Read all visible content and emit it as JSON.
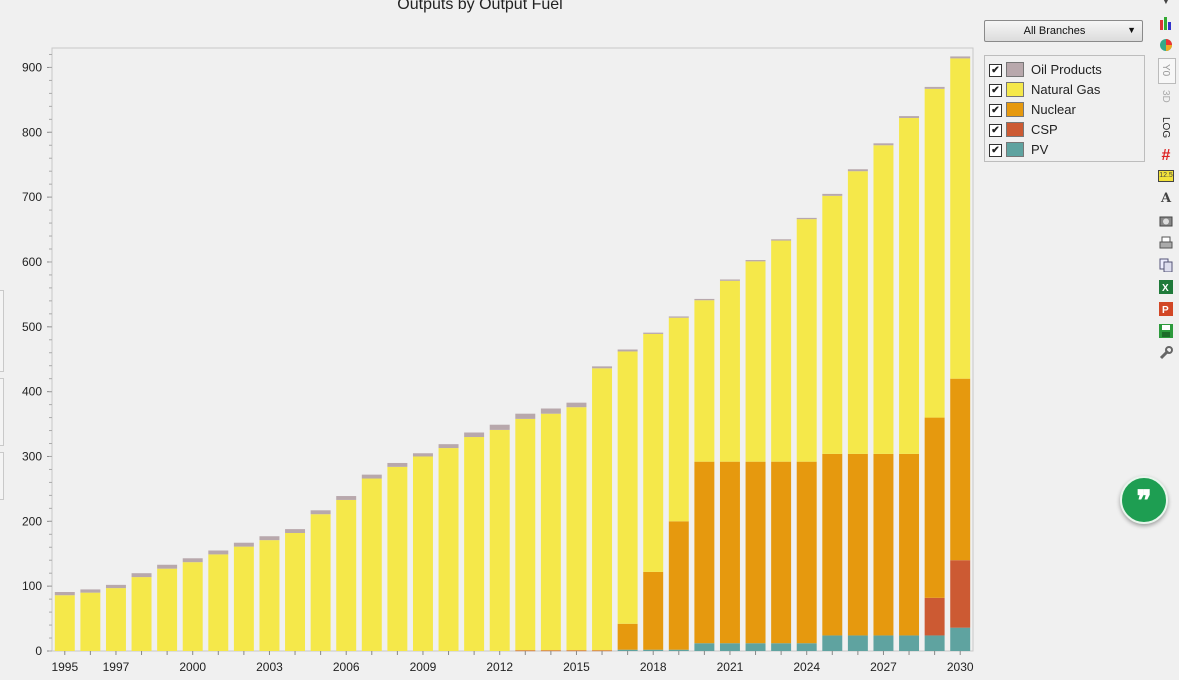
{
  "chart_data": {
    "type": "bar",
    "stacked": true,
    "title": "Outputs by Output Fuel",
    "xlabel": "",
    "ylabel": "",
    "ylim": [
      0,
      930
    ],
    "yticks": [
      0,
      100,
      200,
      300,
      400,
      500,
      600,
      700,
      800,
      900
    ],
    "x_tick_labels": [
      "1995",
      "1997",
      "2000",
      "2003",
      "2006",
      "2009",
      "2012",
      "2015",
      "2018",
      "2021",
      "2024",
      "2027",
      "2030"
    ],
    "categories": [
      "1995",
      "1996",
      "1997",
      "1998",
      "1999",
      "2000",
      "2001",
      "2002",
      "2003",
      "2004",
      "2005",
      "2006",
      "2007",
      "2008",
      "2009",
      "2010",
      "2011",
      "2012",
      "2013",
      "2014",
      "2015",
      "2016",
      "2017",
      "2018",
      "2019",
      "2020",
      "2021",
      "2022",
      "2023",
      "2024",
      "2025",
      "2026",
      "2027",
      "2028",
      "2029",
      "2030"
    ],
    "grid": false,
    "legend_position": "right",
    "series": [
      {
        "name": "PV",
        "color": "#5fa3a0",
        "values": [
          0,
          0,
          0,
          0,
          0,
          0,
          0,
          0,
          0,
          0,
          0,
          0,
          0,
          0,
          0,
          0,
          0,
          0,
          0,
          0,
          0,
          0,
          2,
          2,
          2,
          12,
          12,
          12,
          12,
          12,
          24,
          24,
          24,
          24,
          24,
          36
        ]
      },
      {
        "name": "CSP",
        "color": "#cc5a33",
        "values": [
          0,
          0,
          0,
          0,
          0,
          0,
          0,
          0,
          0,
          0,
          0,
          0,
          0,
          0,
          0,
          0,
          0,
          0,
          1,
          1,
          1,
          1,
          0,
          0,
          0,
          0,
          0,
          0,
          0,
          0,
          0,
          0,
          0,
          0,
          58,
          104
        ]
      },
      {
        "name": "Nuclear",
        "color": "#e6990e",
        "values": [
          0,
          0,
          0,
          0,
          0,
          0,
          0,
          0,
          0,
          0,
          0,
          0,
          0,
          0,
          0,
          0,
          0,
          0,
          0,
          0,
          0,
          0,
          40,
          120,
          198,
          280,
          280,
          280,
          280,
          280,
          280,
          280,
          280,
          280,
          278,
          280
        ]
      },
      {
        "name": "Natural Gas",
        "color": "#f5e84a",
        "values": [
          86,
          90,
          97,
          114,
          127,
          137,
          149,
          161,
          171,
          182,
          211,
          233,
          266,
          284,
          300,
          313,
          330,
          341,
          357,
          365,
          375,
          435,
          420,
          367,
          314,
          249,
          279,
          309,
          341,
          374,
          398,
          436,
          476,
          518,
          507,
          494
        ]
      },
      {
        "name": "Oil Products",
        "color": "#b8a8ac",
        "values": [
          5,
          5,
          5,
          6,
          6,
          6,
          6,
          6,
          6,
          6,
          6,
          6,
          6,
          6,
          5,
          6,
          7,
          8,
          8,
          8,
          7,
          3,
          3,
          2,
          2,
          2,
          2,
          2,
          2,
          2,
          3,
          3,
          3,
          3,
          3,
          3
        ]
      }
    ]
  },
  "branch_select": {
    "label": "All Branches"
  },
  "legend": {
    "items": [
      {
        "name": "Oil Products",
        "color": "#b8a8ac",
        "checked": "✔"
      },
      {
        "name": "Natural Gas",
        "color": "#f5e84a",
        "checked": "✔"
      },
      {
        "name": "Nuclear",
        "color": "#e6990e",
        "checked": "✔"
      },
      {
        "name": "CSP",
        "color": "#cc5a33",
        "checked": "✔"
      },
      {
        "name": "PV",
        "color": "#5fa3a0",
        "checked": "✔"
      }
    ]
  },
  "toolbar": {
    "yo_label": "Y0",
    "d3_label": "3D",
    "log_label": "LOG",
    "decimal_label": "12.5",
    "icons": [
      "chart-type-icon",
      "bar-chart-icon",
      "pie-chart-icon",
      "grid-icon",
      "font-icon",
      "camera-icon",
      "print-icon",
      "copy-icon",
      "excel-icon",
      "powerpoint-icon",
      "save-icon",
      "settings-icon"
    ]
  },
  "quote_button": {
    "glyph": "❞"
  }
}
